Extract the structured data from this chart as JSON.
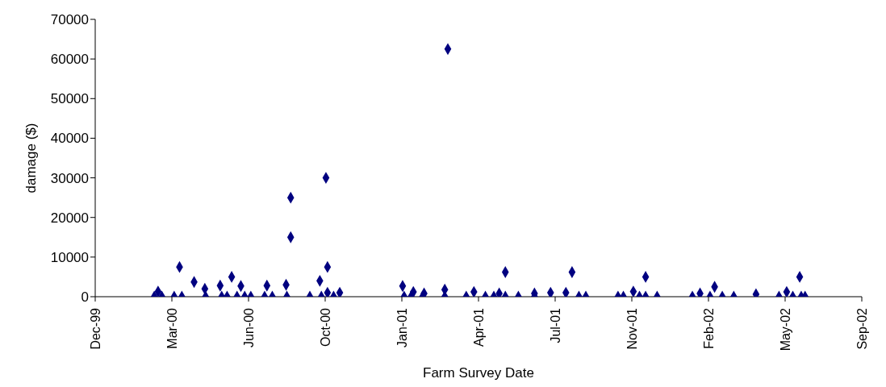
{
  "chart_data": {
    "type": "scatter",
    "xlabel": "Farm Survey Date",
    "ylabel": "damage ($)",
    "xlim": [
      "1999-12-06",
      "2002-09-01"
    ],
    "xticks": [
      {
        "value": "1999-12-06",
        "label": "Dec-99"
      },
      {
        "value": "2000-03-15",
        "label": "Mar-00"
      },
      {
        "value": "2000-06-23",
        "label": "Jun-00"
      },
      {
        "value": "2000-10-01",
        "label": "Oct-00"
      },
      {
        "value": "2001-01-09",
        "label": "Jan-01"
      },
      {
        "value": "2001-04-19",
        "label": "Apr-01"
      },
      {
        "value": "2001-07-28",
        "label": "Jul-01"
      },
      {
        "value": "2001-11-05",
        "label": "Nov-01"
      },
      {
        "value": "2002-02-13",
        "label": "Feb-02"
      },
      {
        "value": "2002-05-24",
        "label": "May-02"
      },
      {
        "value": "2002-09-01",
        "label": "Sep-02"
      }
    ],
    "ylim": [
      0,
      70000
    ],
    "yticks": [
      0,
      10000,
      20000,
      30000,
      40000,
      50000,
      60000,
      70000
    ],
    "grid": false,
    "legend": false,
    "marker": "diamond",
    "series": [
      {
        "color": "#000080",
        "x": [
          "2000-02-21",
          "2000-02-26",
          "2000-03-02",
          "2000-03-18",
          "2000-03-25",
          "2000-03-28",
          "2000-04-13",
          "2000-04-27",
          "2000-04-28",
          "2000-05-17",
          "2000-05-19",
          "2000-05-26",
          "2000-06-01",
          "2000-06-08",
          "2000-06-13",
          "2000-06-18",
          "2000-06-26",
          "2000-07-14",
          "2000-07-17",
          "2000-07-24",
          "2000-08-11",
          "2000-08-12",
          "2000-08-17",
          "2000-08-17",
          "2000-09-11",
          "2000-09-24",
          "2000-09-26",
          "2000-10-02",
          "2000-10-04",
          "2000-10-04",
          "2000-10-12",
          "2000-10-20",
          "2001-01-10",
          "2001-01-12",
          "2001-01-21",
          "2001-01-24",
          "2001-02-05",
          "2001-02-07",
          "2001-03-06",
          "2001-03-06",
          "2001-03-10",
          "2001-04-03",
          "2001-04-13",
          "2001-04-28",
          "2001-05-09",
          "2001-05-16",
          "2001-05-24",
          "2001-05-24",
          "2001-06-10",
          "2001-07-01",
          "2001-07-01",
          "2001-07-22",
          "2001-08-11",
          "2001-08-19",
          "2001-08-28",
          "2001-09-06",
          "2001-10-18",
          "2001-10-25",
          "2001-11-07",
          "2001-11-15",
          "2001-11-23",
          "2001-11-23",
          "2001-12-08",
          "2002-01-23",
          "2002-02-02",
          "2002-02-15",
          "2002-02-21",
          "2002-03-03",
          "2002-03-18",
          "2002-04-16",
          "2002-05-16",
          "2002-05-26",
          "2002-06-03",
          "2002-06-12",
          "2002-06-14",
          "2002-06-19"
        ],
        "values": [
          0,
          1300,
          0,
          0,
          7500,
          0,
          3700,
          2000,
          0,
          2800,
          0,
          0,
          5000,
          0,
          2700,
          0,
          0,
          0,
          2800,
          0,
          3000,
          0,
          15000,
          25000,
          0,
          4000,
          0,
          30000,
          7500,
          1000,
          0,
          1000,
          2700,
          0,
          0,
          1200,
          0,
          800,
          1800,
          0,
          62500,
          0,
          1200,
          0,
          0,
          800,
          6200,
          0,
          0,
          800,
          0,
          1000,
          1000,
          6200,
          0,
          0,
          0,
          0,
          1300,
          0,
          5000,
          0,
          0,
          0,
          800,
          0,
          2500,
          0,
          0,
          600,
          0,
          1200,
          0,
          5000,
          0,
          0
        ]
      }
    ]
  }
}
